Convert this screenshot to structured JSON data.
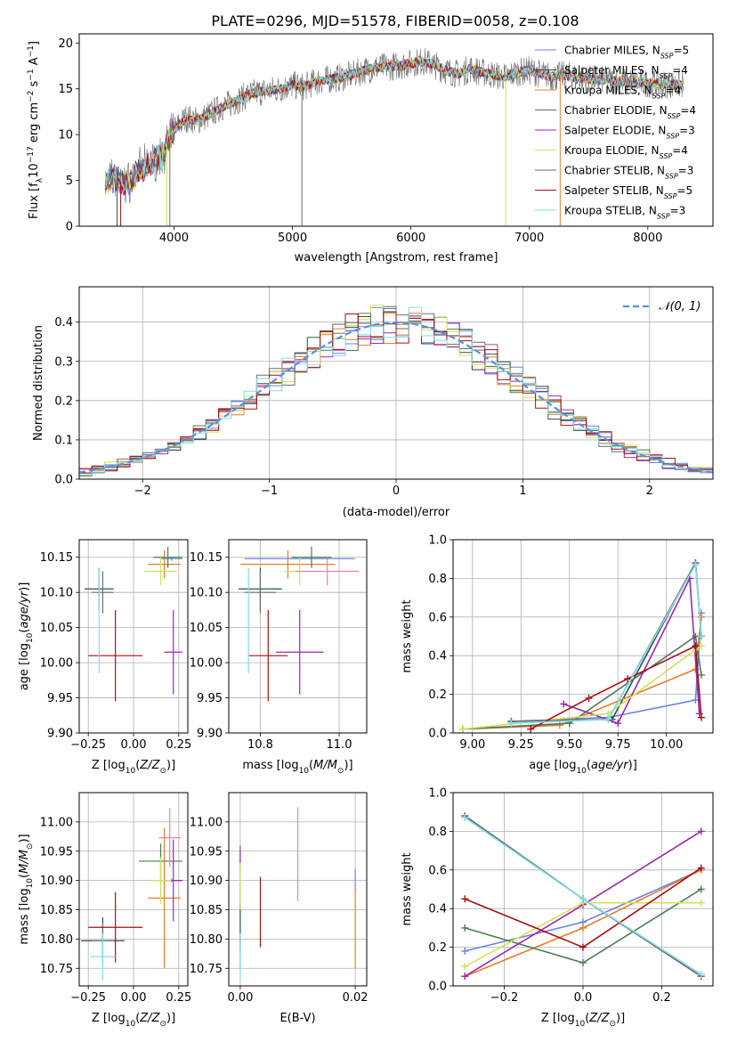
{
  "figure_title": "PLATE=0296, MJD=51578, FIBERID=0058, z=0.108",
  "models": [
    {
      "name": "Chabrier MILES",
      "color": "#6b83e0",
      "nssp": "5"
    },
    {
      "name": "Salpeter MILES",
      "color": "#2f4f4f",
      "nssp": "4"
    },
    {
      "name": "Kroupa MILES",
      "color": "#e87d2a",
      "nssp": "4"
    },
    {
      "name": "Chabrier ELODIE",
      "color": "#4a7a55",
      "nssp": "4"
    },
    {
      "name": "Salpeter ELODIE",
      "color": "#9c27b0",
      "nssp": "3"
    },
    {
      "name": "Kroupa ELODIE",
      "color": "#d4e157",
      "nssp": "4"
    },
    {
      "name": "Chabrier STELIB",
      "color": "#6e6e6e",
      "nssp": "3"
    },
    {
      "name": "Salpeter STELIB",
      "color": "#a50f15",
      "nssp": "5"
    },
    {
      "name": "Kroupa STELIB",
      "color": "#80deea",
      "nssp": "3"
    }
  ],
  "chart_data": [
    {
      "type": "line",
      "id": "spectrum",
      "xlabel": "wavelength [Angstrom, rest frame]",
      "ylabel": "Flux [f_λ 10^-17 erg cm^-2 s^-1 A^-1]",
      "xlim": [
        3200,
        8550
      ],
      "ylim": [
        0,
        21
      ],
      "xticks": [
        4000,
        5000,
        6000,
        7000,
        8000
      ],
      "yticks": [
        0,
        5,
        10,
        15,
        20
      ],
      "grid": false,
      "legend": "top-right",
      "continuum": {
        "x": [
          3420,
          3500,
          3600,
          3700,
          3800,
          3900,
          4000,
          4100,
          4200,
          4300,
          4400,
          4500,
          4600,
          4700,
          4800,
          4900,
          5000,
          5100,
          5200,
          5300,
          5400,
          5500,
          5600,
          5700,
          5800,
          5900,
          6000,
          6100,
          6200,
          6300,
          6400,
          6500,
          6600,
          6700,
          6800,
          6900,
          7000,
          7100,
          7200,
          7300,
          7400,
          7600,
          7800,
          8000,
          8200,
          8300
        ],
        "y": [
          4.8,
          5.2,
          4.5,
          6.0,
          6.8,
          7.8,
          10.5,
          11.8,
          11.5,
          12.2,
          13.0,
          13.5,
          14.2,
          14.6,
          14.8,
          15.0,
          15.4,
          15.2,
          15.8,
          16.0,
          16.2,
          16.5,
          17.0,
          17.3,
          17.4,
          17.5,
          17.8,
          18.0,
          17.6,
          17.0,
          16.6,
          17.2,
          16.8,
          16.5,
          16.3,
          16.8,
          17.0,
          16.6,
          16.3,
          16.5,
          16.2,
          16.0,
          15.8,
          15.6,
          15.5,
          15.4
        ]
      }
    },
    {
      "type": "line",
      "id": "residuals",
      "xlabel": "(data-model)/error",
      "ylabel": "Normed distribution",
      "xlim": [
        -2.5,
        2.5
      ],
      "ylim": [
        0,
        0.49
      ],
      "xticks": [
        -2,
        -1,
        0,
        1,
        2
      ],
      "yticks": [
        0.0,
        0.1,
        0.2,
        0.3,
        0.4
      ],
      "grid": true,
      "legend": "top-right",
      "legend_label": "N(0,1)"
    },
    {
      "type": "scatter",
      "id": "age-vs-z",
      "xlabel": "Z [log10(Z/Z⊙)]",
      "ylabel": "age [log10(age/yr)]",
      "xlim": [
        -0.3,
        0.3
      ],
      "ylim": [
        9.9,
        10.175
      ],
      "xticks": [
        -0.25,
        0.0,
        0.25
      ],
      "yticks": [
        9.9,
        9.95,
        10.0,
        10.05,
        10.1,
        10.15
      ],
      "grid": true,
      "points": [
        {
          "model": 0,
          "x": 0.21,
          "y": 10.148,
          "xerr": 0.06,
          "yerr": 0.003
        },
        {
          "model": 1,
          "x": -0.19,
          "y": 10.105,
          "xerr": 0.08,
          "yerr": 0.03
        },
        {
          "model": 2,
          "x": 0.17,
          "y": 10.14,
          "xerr": 0.09,
          "yerr": 0.02
        },
        {
          "model": 3,
          "x": 0.19,
          "y": 10.15,
          "xerr": 0.08,
          "yerr": 0.015
        },
        {
          "model": 4,
          "x": 0.22,
          "y": 10.015,
          "xerr": 0.05,
          "yerr": 0.06
        },
        {
          "model": 5,
          "x": 0.15,
          "y": 10.13,
          "xerr": 0.09,
          "yerr": 0.02
        },
        {
          "model": 6,
          "x": -0.17,
          "y": 10.1,
          "xerr": 0.06,
          "yerr": 0.03
        },
        {
          "model": 7,
          "x": -0.1,
          "y": 10.01,
          "xerr": 0.15,
          "yerr": 0.065
        },
        {
          "model": 8,
          "x": -0.19,
          "y": 10.06,
          "xerr": 0.0,
          "yerr": 0.075
        }
      ]
    },
    {
      "type": "scatter",
      "id": "age-vs-mass",
      "xlabel": "mass [log10(M/M⊙)]",
      "ylabel": "",
      "xlim": [
        10.72,
        11.07
      ],
      "ylim": [
        9.9,
        10.175
      ],
      "xticks": [
        10.8,
        11.0
      ],
      "yticks": [
        9.9,
        9.95,
        10.0,
        10.05,
        10.1,
        10.15
      ],
      "grid": true,
      "points": [
        {
          "model": 0,
          "x": 10.9,
          "y": 10.148,
          "xerr": 0.14,
          "yerr": 0.003
        },
        {
          "model": 1,
          "x": 10.8,
          "y": 10.105,
          "xerr": 0.055,
          "yerr": 0.03
        },
        {
          "model": 2,
          "x": 10.87,
          "y": 10.14,
          "xerr": 0.12,
          "yerr": 0.02
        },
        {
          "model": 3,
          "x": 10.93,
          "y": 10.15,
          "xerr": 0.05,
          "yerr": 0.015
        },
        {
          "model": 4,
          "x": 10.9,
          "y": 10.015,
          "xerr": 0.06,
          "yerr": 0.06
        },
        {
          "model": 5,
          "x": 10.9,
          "y": 10.13,
          "xerr": 0.04,
          "yerr": 0.02
        },
        {
          "model": 6,
          "x": 10.8,
          "y": 10.1,
          "xerr": 0.04,
          "yerr": 0.03
        },
        {
          "model": 7,
          "x": 10.82,
          "y": 10.01,
          "xerr": 0.05,
          "yerr": 0.065
        },
        {
          "model": 8,
          "x": 10.77,
          "y": 10.06,
          "xerr": 0.0,
          "yerr": 0.075
        },
        {
          "model": 9,
          "x": 10.97,
          "y": 10.13,
          "xerr": 0.08,
          "yerr": 0.02
        }
      ]
    },
    {
      "type": "line",
      "id": "massweight-vs-age",
      "xlabel": "age [log10(age/yr)]",
      "ylabel": "mass weight",
      "xlim": [
        8.9,
        10.24
      ],
      "ylim": [
        0,
        1.0
      ],
      "xticks": [
        9.0,
        9.25,
        9.5,
        9.75,
        10.0
      ],
      "yticks": [
        0.0,
        0.2,
        0.4,
        0.6,
        0.8,
        1.0
      ],
      "grid": true,
      "series": [
        {
          "model": 0,
          "x": [
            9.2,
            9.7,
            10.15,
            10.18
          ],
          "y": [
            0.06,
            0.08,
            0.17,
            0.62
          ]
        },
        {
          "model": 1,
          "x": [
            9.2,
            9.72,
            10.15,
            10.18
          ],
          "y": [
            0.06,
            0.07,
            0.88,
            0.5
          ]
        },
        {
          "model": 2,
          "x": [
            8.95,
            9.45,
            10.15,
            10.18
          ],
          "y": [
            0.02,
            0.04,
            0.33,
            0.6
          ]
        },
        {
          "model": 3,
          "x": [
            8.95,
            9.5,
            10.15,
            10.18
          ],
          "y": [
            0.02,
            0.05,
            0.5,
            0.3
          ]
        },
        {
          "model": 4,
          "x": [
            9.47,
            9.75,
            10.12,
            10.17
          ],
          "y": [
            0.15,
            0.05,
            0.8,
            0.1
          ]
        },
        {
          "model": 5,
          "x": [
            8.95,
            9.7,
            10.15,
            10.18
          ],
          "y": [
            0.02,
            0.1,
            0.43,
            0.45
          ]
        },
        {
          "model": 6,
          "x": [
            9.2,
            9.7,
            10.15,
            10.18
          ],
          "y": [
            0.06,
            0.07,
            0.88,
            0.5
          ]
        },
        {
          "model": 7,
          "x": [
            9.3,
            9.6,
            9.8,
            10.15,
            10.18
          ],
          "y": [
            0.02,
            0.18,
            0.28,
            0.45,
            0.08
          ]
        },
        {
          "model": 8,
          "x": [
            9.2,
            9.7,
            10.15,
            10.18
          ],
          "y": [
            0.05,
            0.07,
            0.87,
            0.5
          ]
        }
      ]
    },
    {
      "type": "scatter",
      "id": "mass-vs-z",
      "xlabel": "Z [log10(Z/Z⊙)]",
      "ylabel": "mass [log10(M/M⊙)]",
      "xlim": [
        -0.3,
        0.3
      ],
      "ylim": [
        10.72,
        11.05
      ],
      "xticks": [
        -0.25,
        0.0,
        0.25
      ],
      "yticks": [
        10.75,
        10.8,
        10.85,
        10.9,
        10.95,
        11.0
      ],
      "grid": true,
      "points": [
        {
          "model": 0,
          "x": 0.21,
          "y": 10.9,
          "xerr": 0.06,
          "yerr": 0.003
        },
        {
          "model": 1,
          "x": -0.17,
          "y": 10.797,
          "xerr": 0.12,
          "yerr": 0.04
        },
        {
          "model": 2,
          "x": 0.17,
          "y": 10.87,
          "xerr": 0.09,
          "yerr": 0.12
        },
        {
          "model": 3,
          "x": 0.15,
          "y": 10.933,
          "xerr": 0.12,
          "yerr": 0.03
        },
        {
          "model": 4,
          "x": 0.22,
          "y": 10.9,
          "xerr": 0.05,
          "yerr": 0.07
        },
        {
          "model": 5,
          "x": 0.15,
          "y": 10.9,
          "xerr": 0.06,
          "yerr": 0.04
        },
        {
          "model": 6,
          "x": -0.17,
          "y": 10.797,
          "xerr": 0.06,
          "yerr": 0.03
        },
        {
          "model": 7,
          "x": -0.1,
          "y": 10.82,
          "xerr": 0.15,
          "yerr": 0.06
        },
        {
          "model": 8,
          "x": -0.17,
          "y": 10.77,
          "xerr": 0.07,
          "yerr": 0.04
        },
        {
          "model": 9,
          "x": 0.2,
          "y": 10.973,
          "xerr": 0.06,
          "yerr": 0.05
        }
      ]
    },
    {
      "type": "scatter",
      "id": "mass-vs-ebv",
      "xlabel": "E(B-V)",
      "ylabel": "",
      "xlim": [
        -0.002,
        0.022
      ],
      "ylim": [
        10.72,
        11.05
      ],
      "xticks": [
        0.0,
        0.02
      ],
      "yticks": [
        10.75,
        10.8,
        10.85,
        10.9,
        10.95,
        11.0
      ],
      "grid": true,
      "points": [
        {
          "model": 0,
          "x": 0.02,
          "y": 10.9,
          "xerr": 0.0,
          "yerr": 0.02
        },
        {
          "model": 1,
          "x": 0.0,
          "y": 10.82,
          "xerr": 0.0,
          "yerr": 0.04
        },
        {
          "model": 2,
          "x": 0.02,
          "y": 10.82,
          "xerr": 0.0,
          "yerr": 0.07
        },
        {
          "model": 3,
          "x": 0.0,
          "y": 10.94,
          "xerr": 0.0,
          "yerr": 0.02
        },
        {
          "model": 4,
          "x": 0.0,
          "y": 10.9,
          "xerr": 0.0,
          "yerr": 0.05
        },
        {
          "model": 5,
          "x": 0.0,
          "y": 10.89,
          "xerr": 0.0,
          "yerr": 0.04
        },
        {
          "model": 6,
          "x": 0.0,
          "y": 10.78,
          "xerr": 0.0,
          "yerr": 0.03
        },
        {
          "model": 7,
          "x": 0.0035,
          "y": 10.846,
          "xerr": 0.0,
          "yerr": 0.06
        },
        {
          "model": 8,
          "x": 0.0,
          "y": 10.77,
          "xerr": 0.0,
          "yerr": 0.04
        },
        {
          "model": 9,
          "x": 0.01,
          "y": 10.945,
          "xerr": 0.0,
          "yerr": 0.08
        }
      ]
    },
    {
      "type": "line",
      "id": "massweight-vs-z",
      "xlabel": "Z [log10(Z/Z⊙)]",
      "ylabel": "mass weight",
      "xlim": [
        -0.33,
        0.33
      ],
      "ylim": [
        0,
        1.0
      ],
      "xticks": [
        -0.2,
        0.0,
        0.2
      ],
      "yticks": [
        0.0,
        0.2,
        0.4,
        0.6,
        0.8,
        1.0
      ],
      "grid": true,
      "series": [
        {
          "model": 0,
          "x": [
            -0.3,
            0.0,
            0.3
          ],
          "y": [
            0.18,
            0.33,
            0.6
          ]
        },
        {
          "model": 1,
          "x": [
            -0.3,
            0.0,
            0.3
          ],
          "y": [
            0.88,
            0.45,
            0.05
          ]
        },
        {
          "model": 2,
          "x": [
            -0.3,
            0.0,
            0.3
          ],
          "y": [
            0.05,
            0.3,
            0.6
          ]
        },
        {
          "model": 3,
          "x": [
            -0.3,
            0.0,
            0.3
          ],
          "y": [
            0.3,
            0.12,
            0.5
          ]
        },
        {
          "model": 4,
          "x": [
            -0.3,
            0.0,
            0.3
          ],
          "y": [
            0.05,
            0.42,
            0.8
          ]
        },
        {
          "model": 5,
          "x": [
            -0.3,
            0.0,
            0.3
          ],
          "y": [
            0.1,
            0.43,
            0.43
          ]
        },
        {
          "model": 6,
          "x": [
            -0.3,
            0.0,
            0.3
          ],
          "y": [
            0.88,
            0.45,
            0.05
          ]
        },
        {
          "model": 7,
          "x": [
            -0.3,
            0.0,
            0.3
          ],
          "y": [
            0.45,
            0.2,
            0.61
          ]
        },
        {
          "model": 8,
          "x": [
            -0.3,
            0.0,
            0.3
          ],
          "y": [
            0.87,
            0.45,
            0.06
          ]
        }
      ]
    }
  ],
  "extra_color": "#f080a8"
}
